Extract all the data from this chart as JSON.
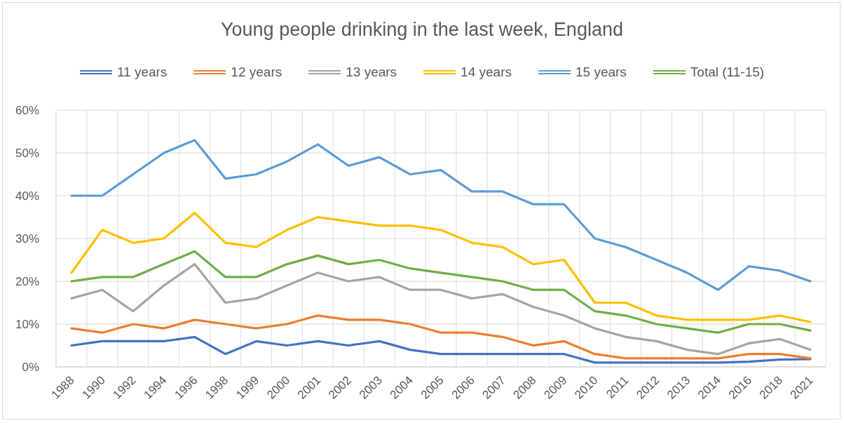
{
  "chart_data": {
    "type": "line",
    "title": "Young people drinking in the last week, England",
    "categories": [
      "1988",
      "1990",
      "1992",
      "1994",
      "1996",
      "1998",
      "1999",
      "2000",
      "2001",
      "2002",
      "2003",
      "2004",
      "2005",
      "2006",
      "2007",
      "2008",
      "2009",
      "2010",
      "2011",
      "2012",
      "2013",
      "2014",
      "2016",
      "2018",
      "2021"
    ],
    "series": [
      {
        "name": "11 years",
        "color": "#4472c4",
        "values": [
          5,
          6,
          6,
          6,
          7,
          3,
          6,
          5,
          6,
          5,
          6,
          4,
          3,
          3,
          3,
          3,
          3,
          1,
          1,
          1,
          1,
          1,
          1.2,
          1.7,
          1.8
        ]
      },
      {
        "name": "12 years",
        "color": "#ed7d31",
        "values": [
          9,
          8,
          10,
          9,
          11,
          10,
          9,
          10,
          12,
          11,
          11,
          10,
          8,
          8,
          7,
          5,
          6,
          3,
          2,
          2,
          2,
          2,
          3,
          3,
          2
        ]
      },
      {
        "name": "13 years",
        "color": "#a5a5a5",
        "values": [
          16,
          18,
          13,
          19,
          24,
          15,
          16,
          19,
          22,
          20,
          21,
          18,
          18,
          16,
          17,
          14,
          12,
          9,
          7,
          6,
          4,
          3,
          5.5,
          6.5,
          4
        ]
      },
      {
        "name": "14 years",
        "color": "#ffc000",
        "values": [
          22,
          32,
          29,
          30,
          36,
          29,
          28,
          32,
          35,
          34,
          33,
          33,
          32,
          29,
          28,
          24,
          25,
          15,
          15,
          12,
          11,
          11,
          11,
          12,
          10.5
        ]
      },
      {
        "name": "15 years",
        "color": "#5b9bd5",
        "values": [
          40,
          40,
          45,
          50,
          53,
          44,
          45,
          48,
          52,
          47,
          49,
          45,
          46,
          41,
          41,
          38,
          38,
          30,
          28,
          25,
          22,
          18,
          23.5,
          22.5,
          20
        ]
      },
      {
        "name": "Total (11-15)",
        "color": "#70ad47",
        "values": [
          20,
          21,
          21,
          24,
          27,
          21,
          21,
          24,
          26,
          24,
          25,
          23,
          22,
          21,
          20,
          18,
          18,
          13,
          12,
          10,
          9,
          8,
          10,
          10,
          8.5
        ]
      }
    ],
    "ylim": [
      0,
      60
    ],
    "yticks": [
      {
        "value": 0,
        "label": "0%"
      },
      {
        "value": 10,
        "label": "10%"
      },
      {
        "value": 20,
        "label": "20%"
      },
      {
        "value": 30,
        "label": "30%"
      },
      {
        "value": 40,
        "label": "40%"
      },
      {
        "value": 50,
        "label": "50%"
      },
      {
        "value": 60,
        "label": "60%"
      }
    ],
    "grid": true,
    "legend": "top",
    "marker": "none",
    "line_style": "solid"
  }
}
